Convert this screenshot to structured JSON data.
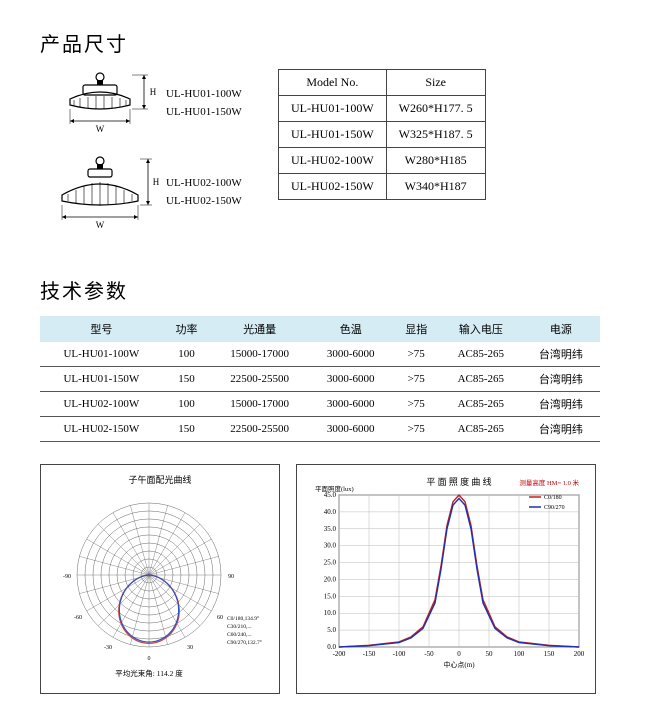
{
  "section1_title": "产品尺寸",
  "section2_title": "技术参数",
  "diagram1": {
    "labels": [
      "UL-HU01-100W",
      "UL-HU01-150W"
    ],
    "w_label": "W",
    "h_label": "H"
  },
  "diagram2": {
    "labels": [
      "UL-HU02-100W",
      "UL-HU02-150W"
    ],
    "w_label": "W",
    "h_label": "H"
  },
  "size_table": {
    "headers": [
      "Model No.",
      "Size"
    ],
    "rows": [
      [
        "UL-HU01-100W",
        "W260*H177. 5"
      ],
      [
        "UL-HU01-150W",
        "W325*H187. 5"
      ],
      [
        "UL-HU02-100W",
        "W280*H185"
      ],
      [
        "UL-HU02-150W",
        "W340*H187"
      ]
    ]
  },
  "spec_table": {
    "headers": [
      "型号",
      "功率",
      "光通量",
      "色温",
      "显指",
      "输入电压",
      "电源"
    ],
    "rows": [
      [
        "UL-HU01-100W",
        "100",
        "15000-17000",
        "3000-6000",
        ">75",
        "AC85-265",
        "台湾明纬"
      ],
      [
        "UL-HU01-150W",
        "150",
        "22500-25500",
        "3000-6000",
        ">75",
        "AC85-265",
        "台湾明纬"
      ],
      [
        "UL-HU02-100W",
        "100",
        "15000-17000",
        "3000-6000",
        ">75",
        "AC85-265",
        "台湾明纬"
      ],
      [
        "UL-HU02-150W",
        "150",
        "22500-25500",
        "3000-6000",
        ">75",
        "AC85-265",
        "台湾明纬"
      ]
    ]
  },
  "polar_chart": {
    "title": "子午面配光曲线",
    "type": "polar",
    "rings": 9,
    "spokes": 24,
    "colors": {
      "grid": "#666666",
      "curve1": "#d04040",
      "curve2": "#3050c0"
    },
    "footer": "平均光束角: 114.2  度",
    "side_annotations": [
      "C0/180,134.9°",
      "C30/210,...",
      "C60/240,...",
      "C90/270,132.7°"
    ]
  },
  "line_chart": {
    "title": "平 面 照 度 曲 线",
    "right_label": "测量高度 HM= 1.0 米",
    "type": "line",
    "background_color": "#ffffff",
    "grid_color": "#bbbbbb",
    "border_color": "#555555",
    "y_label": "平面照度(lux)",
    "x_label": "中心点(m)",
    "y_ticks": [
      0,
      5,
      10,
      15,
      20,
      25,
      30,
      35,
      40,
      45
    ],
    "x_ticks": [
      -200,
      -150,
      -100,
      -50,
      0,
      50,
      100,
      150,
      200
    ],
    "series": [
      {
        "name": "C0/180",
        "color": "#c02020",
        "x": [
          -200,
          -150,
          -100,
          -80,
          -60,
          -40,
          -30,
          -20,
          -10,
          0,
          10,
          20,
          30,
          40,
          60,
          80,
          100,
          150,
          200
        ],
        "y": [
          0,
          0.5,
          1.5,
          3,
          6,
          14,
          24,
          36,
          43,
          45,
          43,
          36,
          24,
          14,
          6,
          3,
          1.5,
          0.5,
          0
        ]
      },
      {
        "name": "C90/270",
        "color": "#2030b0",
        "x": [
          -200,
          -150,
          -100,
          -80,
          -60,
          -40,
          -30,
          -20,
          -10,
          0,
          10,
          20,
          30,
          40,
          60,
          80,
          100,
          150,
          200
        ],
        "y": [
          0,
          0.4,
          1.3,
          2.7,
          5.5,
          13,
          23,
          35,
          42,
          44,
          42,
          35,
          23,
          13,
          5.5,
          2.7,
          1.3,
          0.4,
          0
        ]
      }
    ],
    "title_fontsize": 9,
    "tick_fontsize": 7
  }
}
